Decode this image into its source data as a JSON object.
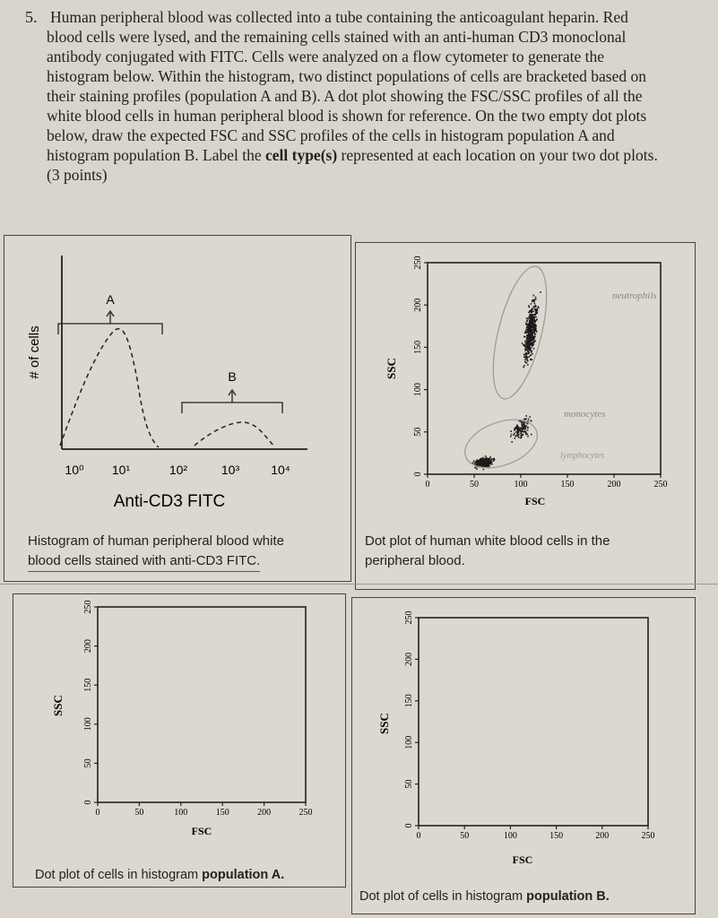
{
  "question": {
    "number": "5.",
    "lines": [
      "Human peripheral blood was collected into a tube containing the anticoagulant heparin. Red",
      "blood cells were lysed, and the remaining cells stained with an anti-human CD3 monoclonal",
      "antibody conjugated with FITC. Cells were analyzed on a flow cytometer to generate the",
      "histogram below. Within the histogram, two distinct populations of cells are bracketed based on",
      "their staining profiles (population A and B). A dot plot showing the FSC/SSC profiles of all the",
      "white blood cells in human peripheral blood is shown for reference. On the two empty dot plots",
      "below, draw the expected FSC and SSC profiles of the cells in histogram population A and"
    ],
    "line8_pre": "histogram population B. Label the ",
    "line8_bold": "cell type(s)",
    "line8_post": " represented at each location on your two dot plots.",
    "points": "(3 points)"
  },
  "histogram": {
    "ylabel": "# of cells",
    "xticks": [
      "10⁰",
      "10¹",
      "10²",
      "10³",
      "10⁴"
    ],
    "xlabel": "Anti-CD3 FITC",
    "label_a": "A",
    "label_b": "B",
    "caption_line1": "Histogram of human peripheral blood white",
    "caption_line2": "blood cells stained with anti-CD3 FITC."
  },
  "reference_plot": {
    "ylabel": "SSC",
    "xlabel": "FSC",
    "yticks": [
      "0",
      "50",
      "100",
      "150",
      "200",
      "250"
    ],
    "xticks": [
      "0",
      "50",
      "100",
      "150",
      "200",
      "250"
    ],
    "annotations": [
      "neutrophils",
      "monocytes",
      "lymphocytes"
    ],
    "caption_line1": "Dot plot of human white blood cells in the",
    "caption_line2": "peripheral blood."
  },
  "plot_a": {
    "ylabel": "SSC",
    "xlabel": "FSC",
    "yticks": [
      "0",
      "50",
      "100",
      "150",
      "200",
      "250"
    ],
    "xticks": [
      "0",
      "50",
      "100",
      "150",
      "200",
      "250"
    ],
    "caption_pre": "Dot plot of cells in histogram ",
    "caption_bold": "population A."
  },
  "plot_b": {
    "ylabel": "SSC",
    "xlabel": "FSC",
    "yticks": [
      "0",
      "50",
      "100",
      "150",
      "200",
      "250"
    ],
    "xticks": [
      "0",
      "50",
      "100",
      "150",
      "200",
      "250"
    ],
    "caption_pre": "Dot plot of cells in histogram ",
    "caption_bold": "population B."
  },
  "chart_data": [
    {
      "type": "line",
      "xlabel": "Anti-CD3 FITC",
      "ylabel": "# of cells",
      "xscale": "log",
      "xlim": [
        1,
        10000
      ],
      "series": [
        {
          "name": "A",
          "x": [
            1.3,
            3,
            6,
            8,
            10,
            14,
            20,
            30,
            40
          ],
          "y": [
            0.04,
            0.45,
            0.85,
            1.0,
            0.95,
            0.6,
            0.3,
            0.08,
            0.02
          ]
        },
        {
          "name": "B",
          "x": [
            100,
            200,
            400,
            700,
            1000,
            1500,
            2500,
            4000
          ],
          "y": [
            0.02,
            0.12,
            0.2,
            0.25,
            0.25,
            0.2,
            0.12,
            0.02
          ]
        }
      ]
    },
    {
      "type": "scatter",
      "xlabel": "FSC",
      "ylabel": "SSC",
      "xlim": [
        0,
        250
      ],
      "ylim": [
        0,
        250
      ],
      "clusters": [
        {
          "label": "lymphocytes",
          "fsc_center": 60,
          "ssc_center": 15
        },
        {
          "label": "monocytes",
          "fsc_center": 100,
          "ssc_center": 55
        },
        {
          "label": "neutrophils",
          "fsc_center": 110,
          "ssc_center": 170
        }
      ]
    },
    {
      "type": "scatter",
      "xlabel": "FSC",
      "ylabel": "SSC",
      "xlim": [
        0,
        250
      ],
      "ylim": [
        0,
        250
      ],
      "points": []
    },
    {
      "type": "scatter",
      "xlabel": "FSC",
      "ylabel": "SSC",
      "xlim": [
        0,
        250
      ],
      "ylim": [
        0,
        250
      ],
      "points": []
    }
  ]
}
